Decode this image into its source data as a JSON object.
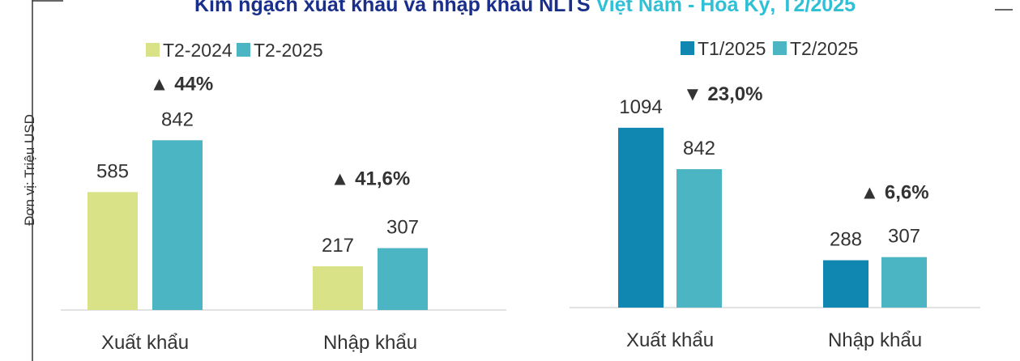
{
  "title": {
    "text": "Kim ngạch xuất khẩu và nhập khẩu NLTS ",
    "highlight": "Việt Nam - Hoa Kỳ, T2/2025"
  },
  "chart_data": [
    {
      "type": "bar",
      "y_label": "Đơn vị: Triệu USD",
      "categories": [
        "Xuất khẩu",
        "Nhập khẩu"
      ],
      "series": [
        {
          "name": "T2-2024",
          "color": "#dae287",
          "values": [
            585,
            217
          ]
        },
        {
          "name": "T2-2025",
          "color": "#4bb5c4",
          "values": [
            842,
            307
          ]
        }
      ],
      "annotations": [
        "▲ 44%",
        "▲ 41,6%"
      ],
      "annotation_colors": [
        "#5aa83a",
        "#5aa83a"
      ],
      "ylim": [
        0,
        1100
      ]
    },
    {
      "type": "bar",
      "categories": [
        "Xuất khẩu",
        "Nhập khẩu"
      ],
      "series": [
        {
          "name": "T1/2025",
          "color": "#0f87b1",
          "values": [
            1094,
            288
          ]
        },
        {
          "name": "T2/2025",
          "color": "#4bb5c4",
          "values": [
            842,
            307
          ]
        }
      ],
      "annotations": [
        "▼ 23,0%",
        "▲ 6,6%"
      ],
      "annotation_colors": [
        "#e8141c",
        "#5aa83a"
      ],
      "ylim": [
        0,
        1300
      ]
    }
  ]
}
